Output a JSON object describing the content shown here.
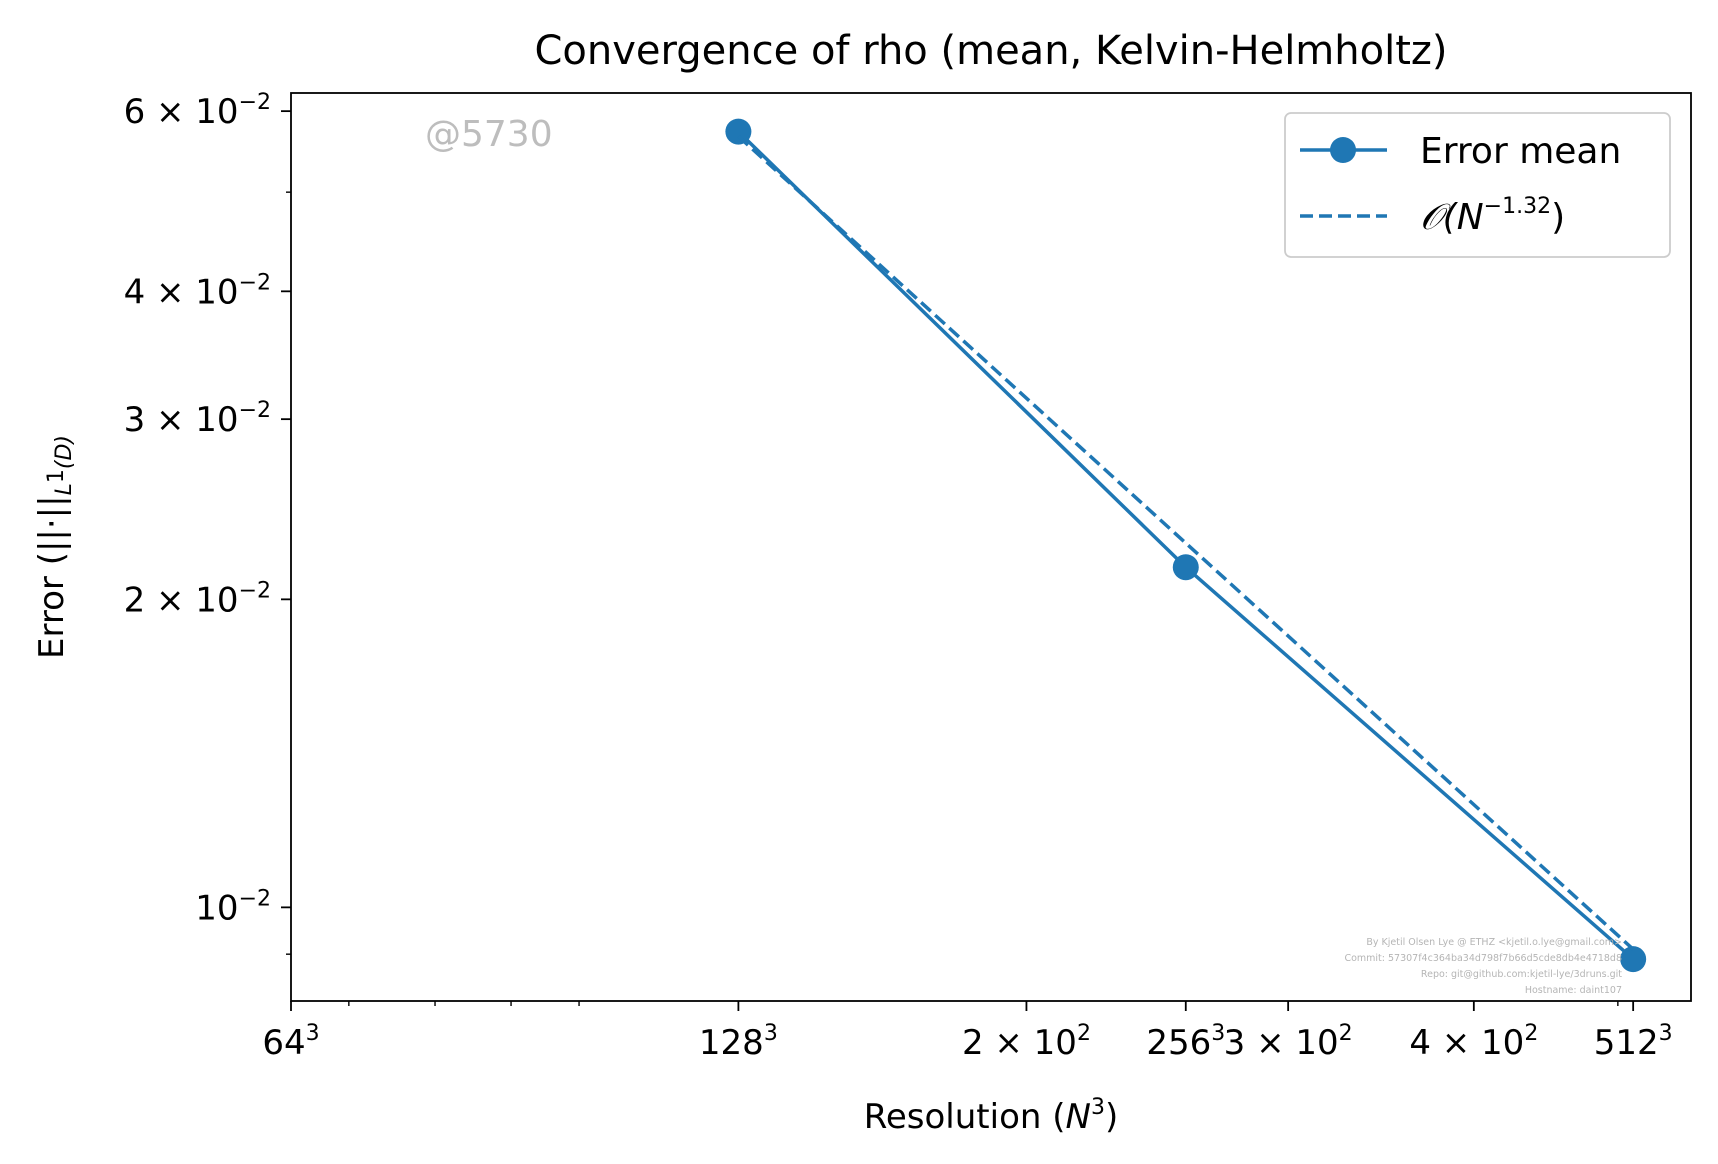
{
  "chart_data": {
    "type": "line",
    "title": "Convergence of rho (mean, Kelvin-Helmholtz)",
    "xlabel": "Resolution",
    "xlabel_math": "N",
    "xlabel_math_sup": "3",
    "ylabel": "Error",
    "ylabel_norm": "||·||",
    "ylabel_sub": "L",
    "ylabel_sub_sup": "1",
    "ylabel_sub_tail": "(D)",
    "x_scale": "log",
    "y_scale": "log",
    "xlim": [
      64,
      560
    ],
    "ylim": [
      0.0081,
      0.0625
    ],
    "grid": false,
    "legend_position": "top-right",
    "x_ticks": [
      {
        "value": 64,
        "base": "64",
        "sup": "3"
      },
      {
        "value": 128,
        "base": "128",
        "sup": "3"
      },
      {
        "value": 200,
        "base": "2 × 10",
        "sup": "2"
      },
      {
        "value": 256,
        "base": "256",
        "sup": "3"
      },
      {
        "value": 300,
        "base": "3 × 10",
        "sup": "2"
      },
      {
        "value": 400,
        "base": "4 × 10",
        "sup": "2"
      },
      {
        "value": 512,
        "base": "512",
        "sup": "3"
      }
    ],
    "x_minor_ticks": [
      70,
      80,
      90,
      100,
      500
    ],
    "y_ticks": [
      {
        "value": 0.01,
        "base": "10",
        "sup": "−2"
      },
      {
        "value": 0.02,
        "base": "2 × 10",
        "sup": "−2"
      },
      {
        "value": 0.03,
        "base": "3 × 10",
        "sup": "−2"
      },
      {
        "value": 0.04,
        "base": "4 × 10",
        "sup": "−2"
      },
      {
        "value": 0.06,
        "base": "6 × 10",
        "sup": "−2"
      }
    ],
    "y_minor_ticks": [
      0.009,
      0.05
    ],
    "series": [
      {
        "name": "Error mean",
        "style": "solid",
        "marker": "circle",
        "color": "#1f77b4",
        "x": [
          128,
          256,
          512
        ],
        "y": [
          0.0573,
          0.0215,
          0.0089
        ]
      },
      {
        "name": "𝒪(N",
        "name_sup": "−1.32",
        "name_tail": ")",
        "style": "dashed",
        "marker": "none",
        "color": "#1f77b4",
        "x": [
          128,
          256,
          512
        ],
        "y": [
          0.0567,
          0.0227,
          0.0091
        ]
      }
    ],
    "stamp": "@5730",
    "credits": [
      "By Kjetil Olsen Lye @ ETHZ <kjetil.o.lye@gmail.com>",
      "Commit: 57307f4c364ba34d798f7b66d5cde8db4e4718d8",
      "Repo: git@github.com:kjetil-lye/3druns.git",
      "Hostname: daint107"
    ]
  }
}
